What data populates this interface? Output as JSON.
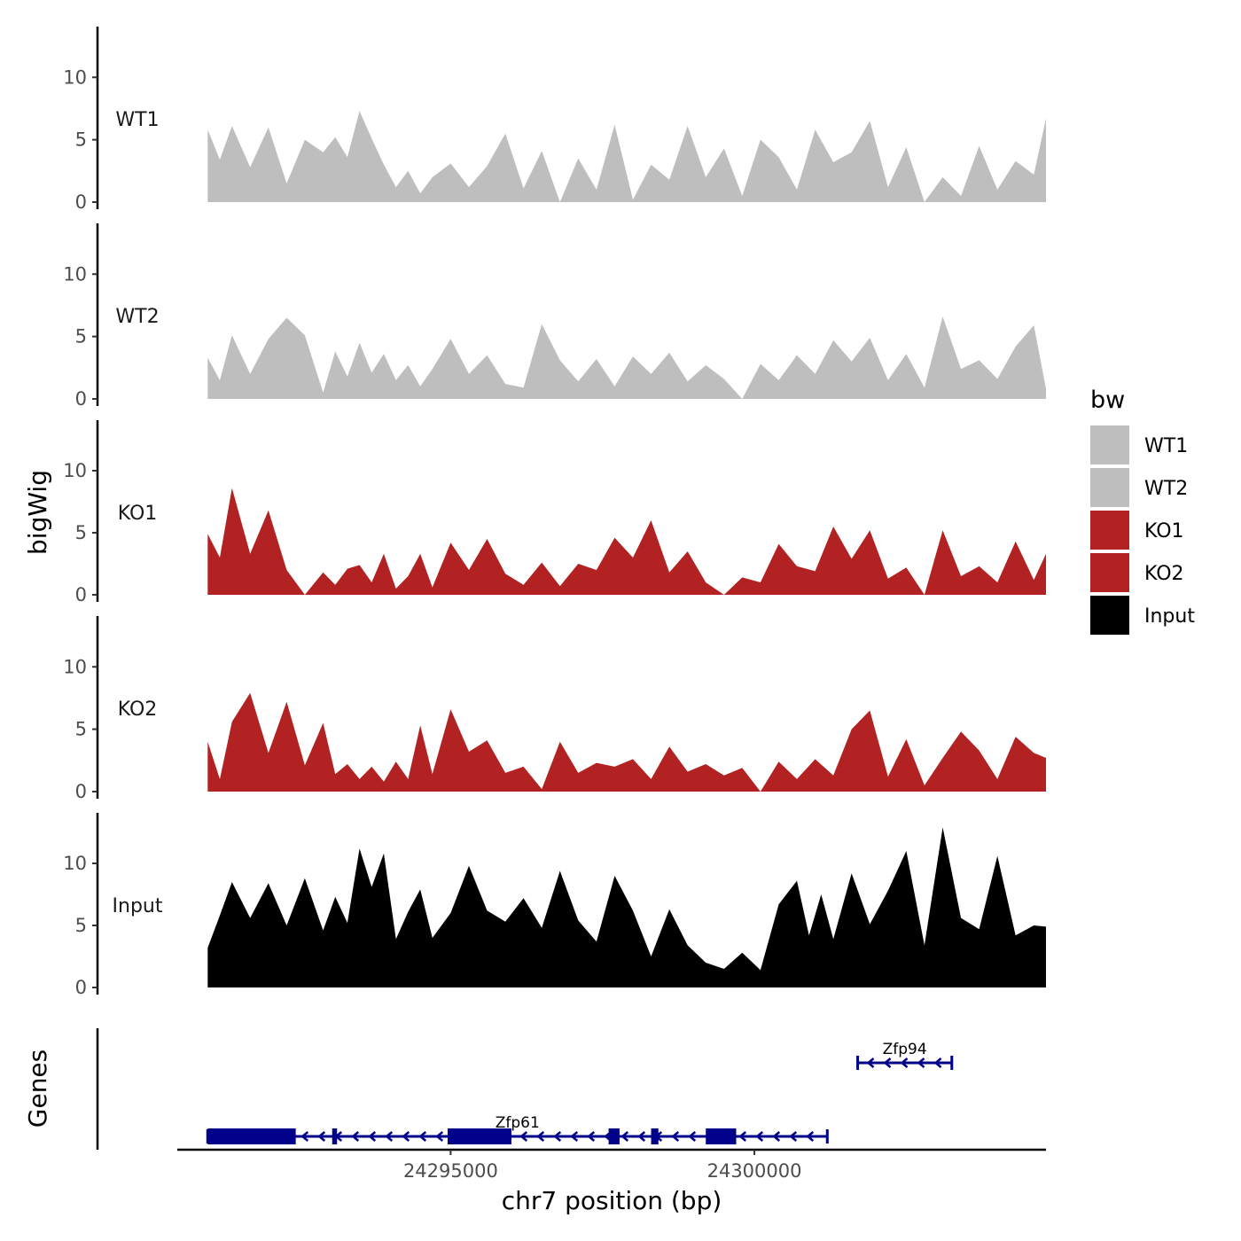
{
  "chart_data": {
    "type": "area",
    "chromosome": "chr7",
    "xlabel": "chr7 position (bp)",
    "ylabel": "bigWig",
    "genes_label": "Genes",
    "xlim": [
      24290500,
      24304800
    ],
    "x_ticks": [
      24295000,
      24300000
    ],
    "x_tick_labels": [
      "24295000",
      "24300000"
    ],
    "ylim": [
      0,
      13.5
    ],
    "y_ticks": [
      0,
      5,
      10
    ],
    "y_tick_labels": [
      "0",
      "5",
      "10"
    ],
    "legend": {
      "title": "bw",
      "entries": [
        {
          "label": "WT1",
          "color": "#bebebe"
        },
        {
          "label": "WT2",
          "color": "#bebebe"
        },
        {
          "label": "KO1",
          "color": "#b22222"
        },
        {
          "label": "KO2",
          "color": "#b22222"
        },
        {
          "label": "Input",
          "color": "#000000"
        }
      ]
    },
    "tracks": [
      {
        "name": "WT1",
        "color": "#bebebe",
        "x": [
          24291000,
          24291200,
          24291400,
          24291700,
          24292000,
          24292300,
          24292600,
          24292900,
          24293100,
          24293300,
          24293500,
          24293700,
          24293900,
          24294100,
          24294300,
          24294500,
          24294700,
          24295000,
          24295300,
          24295600,
          24295900,
          24296200,
          24296500,
          24296800,
          24297100,
          24297400,
          24297700,
          24298000,
          24298300,
          24298600,
          24298900,
          24299200,
          24299500,
          24299800,
          24300100,
          24300400,
          24300700,
          24301000,
          24301300,
          24301600,
          24301900,
          24302200,
          24302500,
          24302800,
          24303100,
          24303400,
          24303700,
          24304000,
          24304300,
          24304600,
          24304800
        ],
        "values": [
          5.8,
          3.4,
          6.1,
          2.8,
          6.0,
          1.5,
          5.0,
          4.0,
          5.2,
          3.6,
          7.3,
          5.1,
          3.0,
          1.2,
          2.5,
          0.7,
          2.0,
          3.1,
          1.2,
          2.9,
          5.5,
          1.1,
          4.1,
          0.0,
          3.5,
          1.0,
          6.2,
          0.2,
          3.0,
          1.8,
          6.1,
          2.0,
          4.3,
          0.5,
          5.0,
          3.6,
          1.0,
          5.8,
          3.2,
          4.0,
          6.5,
          1.2,
          4.4,
          0.0,
          2.0,
          0.5,
          4.5,
          1.0,
          3.3,
          2.2,
          6.7
        ]
      },
      {
        "name": "WT2",
        "color": "#bebebe",
        "x": [
          24291000,
          24291200,
          24291400,
          24291700,
          24292000,
          24292300,
          24292600,
          24292900,
          24293100,
          24293300,
          24293500,
          24293700,
          24293900,
          24294100,
          24294300,
          24294500,
          24294700,
          24295000,
          24295300,
          24295600,
          24295900,
          24296200,
          24296500,
          24296800,
          24297100,
          24297400,
          24297700,
          24298000,
          24298300,
          24298600,
          24298900,
          24299200,
          24299500,
          24299800,
          24300100,
          24300400,
          24300700,
          24301000,
          24301300,
          24301600,
          24301900,
          24302200,
          24302500,
          24302800,
          24303100,
          24303400,
          24303700,
          24304000,
          24304300,
          24304600,
          24304800
        ],
        "values": [
          3.3,
          1.5,
          5.1,
          2.0,
          4.8,
          6.5,
          5.1,
          0.5,
          3.8,
          1.8,
          4.5,
          2.1,
          3.6,
          1.5,
          2.7,
          1.0,
          2.4,
          4.8,
          2.0,
          3.5,
          1.2,
          0.9,
          6.0,
          3.1,
          1.4,
          3.2,
          1.0,
          3.4,
          2.0,
          3.7,
          1.4,
          2.7,
          1.6,
          0.0,
          2.8,
          1.5,
          3.5,
          2.0,
          4.7,
          3.0,
          4.9,
          1.5,
          3.6,
          0.9,
          6.6,
          2.4,
          3.1,
          1.6,
          4.2,
          5.9,
          0.8
        ]
      },
      {
        "name": "KO1",
        "color": "#b22222",
        "x": [
          24291000,
          24291200,
          24291400,
          24291700,
          24292000,
          24292300,
          24292600,
          24292900,
          24293100,
          24293300,
          24293500,
          24293700,
          24293900,
          24294100,
          24294300,
          24294500,
          24294700,
          24295000,
          24295300,
          24295600,
          24295900,
          24296200,
          24296500,
          24296800,
          24297100,
          24297400,
          24297700,
          24298000,
          24298300,
          24298600,
          24298900,
          24299200,
          24299500,
          24299800,
          24300100,
          24300400,
          24300700,
          24301000,
          24301300,
          24301600,
          24301900,
          24302200,
          24302500,
          24302800,
          24303100,
          24303400,
          24303700,
          24304000,
          24304300,
          24304600,
          24304800
        ],
        "values": [
          4.9,
          3.0,
          8.6,
          3.3,
          6.8,
          2.0,
          0.0,
          1.8,
          0.8,
          2.1,
          2.4,
          1.0,
          3.3,
          0.5,
          1.5,
          3.3,
          0.6,
          4.2,
          2.0,
          4.5,
          1.7,
          0.8,
          2.6,
          0.7,
          2.5,
          2.0,
          4.6,
          3.0,
          6.0,
          1.8,
          3.5,
          1.0,
          0.0,
          1.4,
          1.0,
          4.1,
          2.3,
          1.9,
          5.5,
          2.9,
          5.2,
          1.3,
          2.2,
          0.0,
          5.2,
          1.5,
          2.3,
          1.0,
          4.3,
          1.2,
          3.3
        ]
      },
      {
        "name": "KO2",
        "color": "#b22222",
        "x": [
          24291000,
          24291200,
          24291400,
          24291700,
          24292000,
          24292300,
          24292600,
          24292900,
          24293100,
          24293300,
          24293500,
          24293700,
          24293900,
          24294100,
          24294300,
          24294500,
          24294700,
          24295000,
          24295300,
          24295600,
          24295900,
          24296200,
          24296500,
          24296800,
          24297100,
          24297400,
          24297700,
          24298000,
          24298300,
          24298600,
          24298900,
          24299200,
          24299500,
          24299800,
          24300100,
          24300400,
          24300700,
          24301000,
          24301300,
          24301600,
          24301900,
          24302200,
          24302500,
          24302800,
          24303100,
          24303400,
          24303700,
          24304000,
          24304300,
          24304600,
          24304800
        ],
        "values": [
          4.0,
          1.0,
          5.6,
          7.9,
          3.1,
          7.2,
          2.1,
          5.5,
          1.4,
          2.2,
          1.0,
          2.0,
          0.8,
          2.4,
          1.0,
          5.3,
          1.4,
          6.6,
          3.2,
          4.1,
          1.5,
          2.0,
          0.2,
          4.0,
          1.5,
          2.3,
          2.0,
          2.6,
          1.0,
          3.6,
          1.6,
          2.2,
          1.3,
          1.9,
          0.0,
          2.4,
          1.0,
          2.6,
          1.3,
          5.0,
          6.5,
          1.2,
          4.2,
          0.5,
          2.7,
          4.8,
          3.3,
          1.0,
          4.4,
          3.1,
          2.7
        ]
      },
      {
        "name": "Input",
        "color": "#000000",
        "x": [
          24291000,
          24291200,
          24291400,
          24291700,
          24292000,
          24292300,
          24292600,
          24292900,
          24293100,
          24293300,
          24293500,
          24293700,
          24293900,
          24294100,
          24294300,
          24294500,
          24294700,
          24295000,
          24295300,
          24295600,
          24295900,
          24296200,
          24296500,
          24296800,
          24297100,
          24297400,
          24297700,
          24298000,
          24298300,
          24298600,
          24298900,
          24299200,
          24299500,
          24299800,
          24300100,
          24300400,
          24300700,
          24300900,
          24301100,
          24301300,
          24301600,
          24301900,
          24302200,
          24302500,
          24302800,
          24303100,
          24303400,
          24303700,
          24304000,
          24304300,
          24304600,
          24304800
        ],
        "values": [
          3.2,
          5.8,
          8.5,
          5.6,
          8.4,
          5.0,
          8.8,
          4.6,
          7.3,
          5.2,
          11.2,
          8.1,
          10.8,
          3.9,
          6.1,
          7.9,
          4.0,
          6.0,
          9.8,
          6.2,
          5.3,
          7.2,
          4.8,
          9.4,
          5.4,
          3.7,
          9.0,
          6.2,
          2.5,
          6.3,
          3.4,
          2.0,
          1.5,
          2.8,
          1.4,
          6.7,
          8.6,
          4.2,
          7.5,
          3.9,
          9.2,
          5.1,
          7.8,
          11.0,
          3.4,
          12.9,
          5.6,
          4.7,
          10.6,
          4.2,
          5.0,
          4.9
        ]
      }
    ],
    "genes": [
      {
        "name": "Zfp61",
        "strand": "-",
        "start": 24291000,
        "end": 24301200,
        "exons": [
          [
            24291000,
            24292450
          ],
          [
            24293050,
            24293130
          ],
          [
            24294950,
            24296000
          ],
          [
            24297600,
            24297780
          ],
          [
            24298300,
            24298420
          ],
          [
            24299200,
            24299700
          ]
        ]
      },
      {
        "name": "Zfp94",
        "strand": "-",
        "start": 24301700,
        "end": 24303250,
        "exons": []
      }
    ]
  }
}
